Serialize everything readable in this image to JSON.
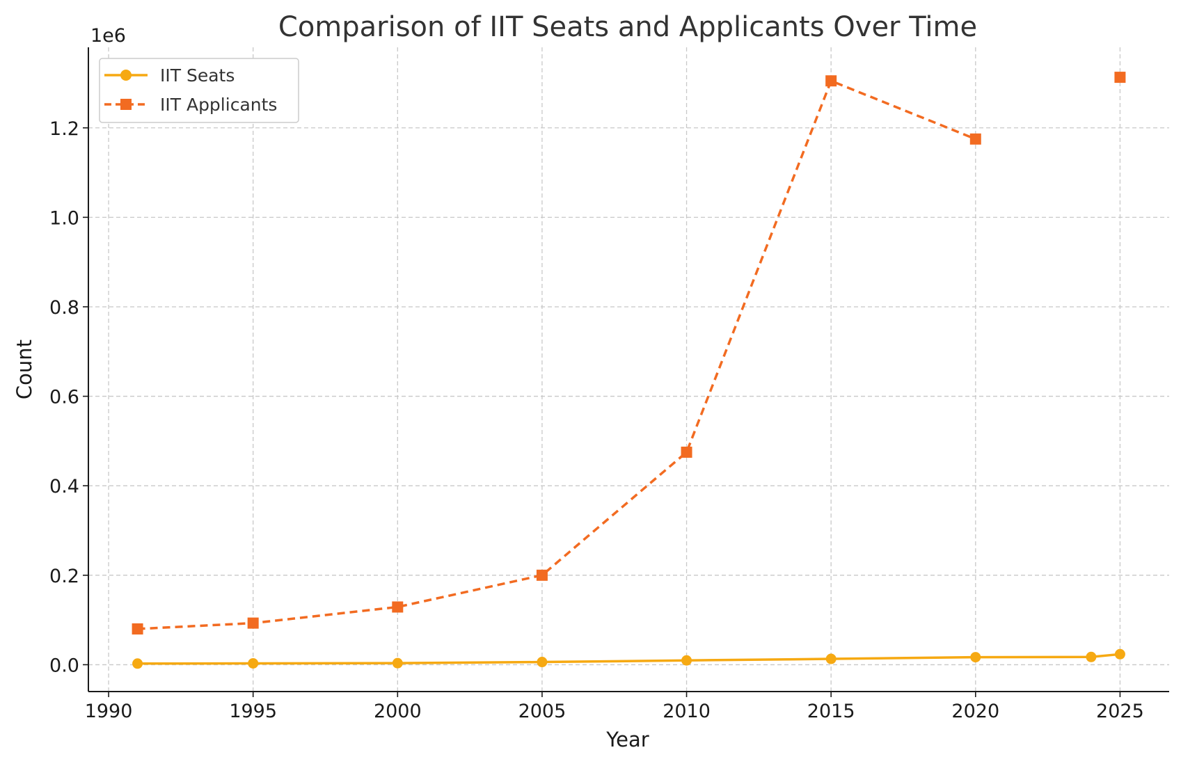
{
  "chart_data": {
    "type": "line",
    "title": "Comparison of IIT Seats and Applicants Over Time",
    "xlabel": "Year",
    "ylabel": "Count",
    "y_offset_label": "1e6",
    "xlim": [
      1989.3,
      2026.7
    ],
    "ylim": [
      -60000,
      1380000
    ],
    "x_ticks": [
      1990,
      1995,
      2000,
      2005,
      2010,
      2015,
      2020,
      2025
    ],
    "y_ticks": [
      0,
      200000,
      400000,
      600000,
      800000,
      1000000,
      1200000
    ],
    "y_tick_labels": [
      "0.0",
      "0.2",
      "0.4",
      "0.6",
      "0.8",
      "1.0",
      "1.2"
    ],
    "grid": true,
    "legend_position": "top-left",
    "series": [
      {
        "name": "IIT Seats",
        "color": "#F6A912",
        "marker": "circle",
        "line_style": "solid",
        "points": [
          {
            "x": 1991,
            "y": 2500
          },
          {
            "x": 1995,
            "y": 3000
          },
          {
            "x": 2000,
            "y": 3500
          },
          {
            "x": 2005,
            "y": 6000
          },
          {
            "x": 2010,
            "y": 9600
          },
          {
            "x": 2015,
            "y": 13000
          },
          {
            "x": 2020,
            "y": 16800
          },
          {
            "x": 2024,
            "y": 17300
          },
          {
            "x": 2025,
            "y": 23500
          }
        ]
      },
      {
        "name": "IIT Applicants",
        "color": "#F26B21",
        "marker": "square",
        "line_style": "dashed",
        "points": [
          {
            "x": 1991,
            "y": 80000
          },
          {
            "x": 1995,
            "y": 93000
          },
          {
            "x": 2000,
            "y": 129000
          },
          {
            "x": 2005,
            "y": 200000
          },
          {
            "x": 2010,
            "y": 475000
          },
          {
            "x": 2015,
            "y": 1305000
          },
          {
            "x": 2020,
            "y": 1175000
          },
          {
            "x": 2025,
            "y": 1313000
          }
        ],
        "segments": [
          [
            0,
            6
          ],
          [
            7,
            7
          ]
        ]
      }
    ]
  }
}
